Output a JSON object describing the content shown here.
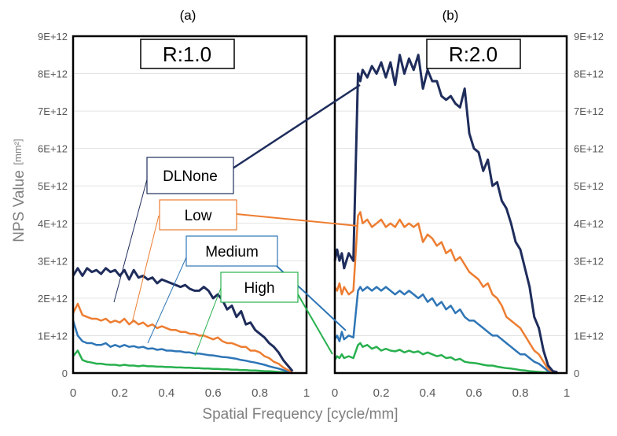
{
  "chart_data": [
    {
      "type": "line",
      "panel_label": "(a)",
      "title": "R:1.0",
      "xlabel": "Spatial Frequency  [cycle/mm]",
      "ylabel": "NPS Value",
      "ylabel_unit": "[mm²]",
      "xlim": [
        0,
        1
      ],
      "ylim": [
        0,
        9000000000000
      ],
      "x_ticks": [
        "0",
        "0.2",
        "0.4",
        "0.6",
        "0.8",
        "1"
      ],
      "y_ticks": [
        "0",
        "1E+12",
        "2E+12",
        "3E+12",
        "4E+12",
        "5E+12",
        "6E+12",
        "7E+12",
        "8E+12",
        "9E+12"
      ],
      "series": [
        {
          "name": "DLNone",
          "color": "#1f2d5c",
          "x": [
            0,
            0.02,
            0.04,
            0.06,
            0.08,
            0.1,
            0.12,
            0.14,
            0.16,
            0.18,
            0.2,
            0.22,
            0.24,
            0.26,
            0.28,
            0.3,
            0.32,
            0.34,
            0.36,
            0.38,
            0.4,
            0.42,
            0.44,
            0.46,
            0.48,
            0.5,
            0.52,
            0.54,
            0.56,
            0.58,
            0.6,
            0.62,
            0.64,
            0.66,
            0.68,
            0.7,
            0.72,
            0.74,
            0.76,
            0.78,
            0.8,
            0.82,
            0.84,
            0.86,
            0.88,
            0.9,
            0.92,
            0.94
          ],
          "y": [
            2.6,
            2.8,
            2.6,
            2.8,
            2.7,
            2.75,
            2.65,
            2.8,
            2.7,
            2.75,
            2.6,
            2.75,
            2.5,
            2.75,
            2.55,
            2.6,
            2.5,
            2.55,
            2.4,
            2.5,
            2.45,
            2.4,
            2.35,
            2.3,
            2.35,
            2.25,
            2.2,
            2.2,
            2.3,
            2.2,
            2.0,
            2.1,
            1.95,
            1.7,
            1.8,
            1.5,
            1.65,
            1.3,
            1.35,
            1.15,
            1.05,
            0.95,
            0.8,
            0.7,
            0.55,
            0.35,
            0.2,
            0.05
          ]
        },
        {
          "name": "Low",
          "color": "#ed7d31",
          "x": [
            0,
            0.02,
            0.04,
            0.06,
            0.08,
            0.1,
            0.12,
            0.14,
            0.16,
            0.18,
            0.2,
            0.22,
            0.24,
            0.26,
            0.28,
            0.3,
            0.32,
            0.34,
            0.36,
            0.38,
            0.4,
            0.42,
            0.44,
            0.46,
            0.48,
            0.5,
            0.52,
            0.54,
            0.56,
            0.58,
            0.6,
            0.62,
            0.64,
            0.66,
            0.68,
            0.7,
            0.72,
            0.74,
            0.76,
            0.78,
            0.8,
            0.82,
            0.84,
            0.86,
            0.88,
            0.9,
            0.92,
            0.94
          ],
          "y": [
            1.6,
            1.85,
            1.55,
            1.5,
            1.45,
            1.45,
            1.4,
            1.45,
            1.35,
            1.4,
            1.35,
            1.45,
            1.3,
            1.4,
            1.3,
            1.35,
            1.25,
            1.3,
            1.2,
            1.25,
            1.2,
            1.15,
            1.15,
            1.1,
            1.1,
            1.05,
            1.05,
            1.0,
            1.0,
            0.95,
            0.9,
            0.95,
            0.85,
            0.8,
            0.8,
            0.75,
            0.7,
            0.7,
            0.6,
            0.6,
            0.55,
            0.45,
            0.4,
            0.3,
            0.25,
            0.15,
            0.08,
            0.03
          ]
        },
        {
          "name": "Medium",
          "color": "#2e75b6",
          "x": [
            0,
            0.02,
            0.04,
            0.06,
            0.08,
            0.1,
            0.12,
            0.14,
            0.16,
            0.18,
            0.2,
            0.22,
            0.24,
            0.26,
            0.28,
            0.3,
            0.32,
            0.34,
            0.36,
            0.38,
            0.4,
            0.42,
            0.44,
            0.46,
            0.48,
            0.5,
            0.52,
            0.54,
            0.56,
            0.58,
            0.6,
            0.62,
            0.64,
            0.66,
            0.68,
            0.7,
            0.72,
            0.74,
            0.76,
            0.78,
            0.8,
            0.82,
            0.84,
            0.86,
            0.88,
            0.9,
            0.92,
            0.94
          ],
          "y": [
            1.4,
            1.0,
            0.85,
            0.8,
            0.8,
            0.75,
            0.75,
            0.8,
            0.7,
            0.75,
            0.7,
            0.75,
            0.7,
            0.72,
            0.68,
            0.7,
            0.65,
            0.66,
            0.62,
            0.64,
            0.6,
            0.6,
            0.58,
            0.58,
            0.55,
            0.55,
            0.52,
            0.52,
            0.5,
            0.48,
            0.47,
            0.45,
            0.43,
            0.42,
            0.4,
            0.38,
            0.35,
            0.33,
            0.3,
            0.28,
            0.25,
            0.22,
            0.18,
            0.15,
            0.12,
            0.08,
            0.04,
            0.02
          ]
        },
        {
          "name": "High",
          "color": "#28b04e",
          "x": [
            0,
            0.02,
            0.04,
            0.06,
            0.08,
            0.1,
            0.12,
            0.14,
            0.16,
            0.18,
            0.2,
            0.22,
            0.24,
            0.26,
            0.28,
            0.3,
            0.32,
            0.34,
            0.36,
            0.38,
            0.4,
            0.42,
            0.44,
            0.46,
            0.48,
            0.5,
            0.52,
            0.54,
            0.56,
            0.58,
            0.6,
            0.62,
            0.64,
            0.66,
            0.68,
            0.7,
            0.72,
            0.74,
            0.76,
            0.78,
            0.8,
            0.82,
            0.84,
            0.86,
            0.88,
            0.9,
            0.92,
            0.94
          ],
          "y": [
            0.45,
            0.6,
            0.35,
            0.3,
            0.28,
            0.25,
            0.25,
            0.23,
            0.22,
            0.22,
            0.2,
            0.22,
            0.2,
            0.2,
            0.18,
            0.2,
            0.18,
            0.18,
            0.17,
            0.17,
            0.16,
            0.16,
            0.15,
            0.15,
            0.14,
            0.14,
            0.13,
            0.13,
            0.12,
            0.12,
            0.11,
            0.11,
            0.1,
            0.1,
            0.09,
            0.09,
            0.08,
            0.08,
            0.07,
            0.07,
            0.06,
            0.05,
            0.05,
            0.04,
            0.03,
            0.02,
            0.01,
            0.0
          ]
        }
      ]
    },
    {
      "type": "line",
      "panel_label": "(b)",
      "title": "R:2.0",
      "xlabel": "Spatial Frequency  [cycle/mm]",
      "ylabel": "NPS Value",
      "xlim": [
        0,
        1
      ],
      "ylim": [
        0,
        9000000000000
      ],
      "x_ticks": [
        "0",
        "0.2",
        "0.4",
        "0.6",
        "0.8",
        "1"
      ],
      "y_ticks": [
        "0",
        "1E+12",
        "2E+12",
        "3E+12",
        "4E+12",
        "5E+12",
        "6E+12",
        "7E+12",
        "8E+12",
        "9E+12"
      ],
      "series": [
        {
          "name": "DLNone",
          "color": "#1f2d5c",
          "x": [
            0,
            0.01,
            0.02,
            0.03,
            0.04,
            0.06,
            0.08,
            0.1,
            0.11,
            0.12,
            0.14,
            0.16,
            0.18,
            0.2,
            0.22,
            0.24,
            0.26,
            0.28,
            0.3,
            0.32,
            0.34,
            0.36,
            0.38,
            0.4,
            0.42,
            0.44,
            0.46,
            0.48,
            0.5,
            0.52,
            0.54,
            0.56,
            0.58,
            0.6,
            0.62,
            0.64,
            0.66,
            0.68,
            0.7,
            0.72,
            0.74,
            0.76,
            0.78,
            0.8,
            0.82,
            0.84,
            0.86,
            0.88,
            0.9,
            0.92,
            0.94,
            0.96
          ],
          "y": [
            3.0,
            3.3,
            3.0,
            3.2,
            2.8,
            3.2,
            3.0,
            8.0,
            7.8,
            8.1,
            7.9,
            8.2,
            8.0,
            8.3,
            7.9,
            8.3,
            7.7,
            8.5,
            8.0,
            8.4,
            8.1,
            8.5,
            7.6,
            8.1,
            7.8,
            7.8,
            7.4,
            7.3,
            7.4,
            7.2,
            7.1,
            7.6,
            6.4,
            6.0,
            5.9,
            5.4,
            5.7,
            5.0,
            5.1,
            4.6,
            4.4,
            4.0,
            3.5,
            3.3,
            2.8,
            2.3,
            1.5,
            1.2,
            0.6,
            0.2,
            0.05,
            0.02
          ]
        },
        {
          "name": "Low",
          "color": "#ed7d31",
          "x": [
            0,
            0.01,
            0.02,
            0.03,
            0.04,
            0.06,
            0.08,
            0.1,
            0.11,
            0.12,
            0.14,
            0.16,
            0.18,
            0.2,
            0.22,
            0.24,
            0.26,
            0.28,
            0.3,
            0.32,
            0.34,
            0.36,
            0.38,
            0.4,
            0.42,
            0.44,
            0.46,
            0.48,
            0.5,
            0.52,
            0.54,
            0.56,
            0.58,
            0.6,
            0.62,
            0.64,
            0.66,
            0.68,
            0.7,
            0.72,
            0.74,
            0.76,
            0.78,
            0.8,
            0.82,
            0.84,
            0.86,
            0.88,
            0.9,
            0.92,
            0.94,
            0.96
          ],
          "y": [
            2.3,
            2.2,
            2.4,
            2.1,
            2.3,
            2.1,
            2.2,
            4.2,
            4.3,
            4.0,
            4.1,
            3.9,
            4.0,
            4.1,
            3.9,
            4.0,
            3.9,
            4.1,
            3.9,
            4.0,
            3.9,
            4.0,
            3.5,
            3.7,
            3.6,
            3.4,
            3.5,
            3.2,
            3.3,
            3.0,
            3.1,
            2.9,
            2.7,
            2.6,
            2.5,
            2.3,
            2.4,
            2.1,
            2.0,
            1.8,
            1.5,
            1.4,
            1.3,
            1.2,
            1.0,
            0.8,
            0.6,
            0.5,
            0.3,
            0.1,
            0.03,
            0.01
          ]
        },
        {
          "name": "Medium",
          "color": "#2e75b6",
          "x": [
            0,
            0.01,
            0.02,
            0.03,
            0.04,
            0.06,
            0.08,
            0.1,
            0.11,
            0.12,
            0.14,
            0.16,
            0.18,
            0.2,
            0.22,
            0.24,
            0.26,
            0.28,
            0.3,
            0.32,
            0.34,
            0.36,
            0.38,
            0.4,
            0.42,
            0.44,
            0.46,
            0.48,
            0.5,
            0.52,
            0.54,
            0.56,
            0.58,
            0.6,
            0.62,
            0.64,
            0.66,
            0.68,
            0.7,
            0.72,
            0.74,
            0.76,
            0.78,
            0.8,
            0.82,
            0.84,
            0.86,
            0.88,
            0.9,
            0.92,
            0.94,
            0.96
          ],
          "y": [
            0.9,
            1.0,
            0.85,
            1.1,
            0.9,
            1.0,
            0.95,
            2.2,
            2.3,
            2.2,
            2.3,
            2.2,
            2.3,
            2.2,
            2.3,
            2.2,
            2.1,
            2.2,
            2.1,
            2.2,
            2.1,
            2.0,
            2.1,
            1.9,
            2.0,
            1.8,
            1.9,
            1.7,
            1.8,
            1.6,
            1.7,
            1.5,
            1.4,
            1.4,
            1.3,
            1.2,
            1.1,
            1.0,
            1.0,
            0.9,
            0.8,
            0.7,
            0.6,
            0.5,
            0.5,
            0.4,
            0.3,
            0.25,
            0.15,
            0.05,
            0.02,
            0.01
          ]
        },
        {
          "name": "High",
          "color": "#28b04e",
          "x": [
            0,
            0.01,
            0.02,
            0.03,
            0.04,
            0.06,
            0.08,
            0.1,
            0.11,
            0.12,
            0.14,
            0.16,
            0.18,
            0.2,
            0.22,
            0.24,
            0.26,
            0.28,
            0.3,
            0.32,
            0.34,
            0.36,
            0.38,
            0.4,
            0.42,
            0.44,
            0.46,
            0.48,
            0.5,
            0.52,
            0.54,
            0.56,
            0.58,
            0.6,
            0.62,
            0.64,
            0.66,
            0.68,
            0.7,
            0.72,
            0.74,
            0.76,
            0.78,
            0.8,
            0.82,
            0.84,
            0.86,
            0.88,
            0.9,
            0.92,
            0.94,
            0.96
          ],
          "y": [
            0.35,
            0.45,
            0.4,
            0.5,
            0.4,
            0.45,
            0.4,
            0.75,
            0.8,
            0.7,
            0.75,
            0.65,
            0.7,
            0.6,
            0.65,
            0.6,
            0.58,
            0.62,
            0.55,
            0.6,
            0.55,
            0.58,
            0.5,
            0.55,
            0.5,
            0.45,
            0.48,
            0.4,
            0.42,
            0.35,
            0.38,
            0.3,
            0.28,
            0.27,
            0.25,
            0.22,
            0.2,
            0.2,
            0.17,
            0.15,
            0.13,
            0.12,
            0.1,
            0.08,
            0.07,
            0.05,
            0.04,
            0.03,
            0.02,
            0.01,
            0.0,
            0.0
          ]
        }
      ]
    }
  ],
  "callouts": [
    {
      "label": "DLNone",
      "series": "DLNone"
    },
    {
      "label": "Low",
      "series": "Low"
    },
    {
      "label": "Medium",
      "series": "Medium"
    },
    {
      "label": "High",
      "series": "High"
    }
  ]
}
